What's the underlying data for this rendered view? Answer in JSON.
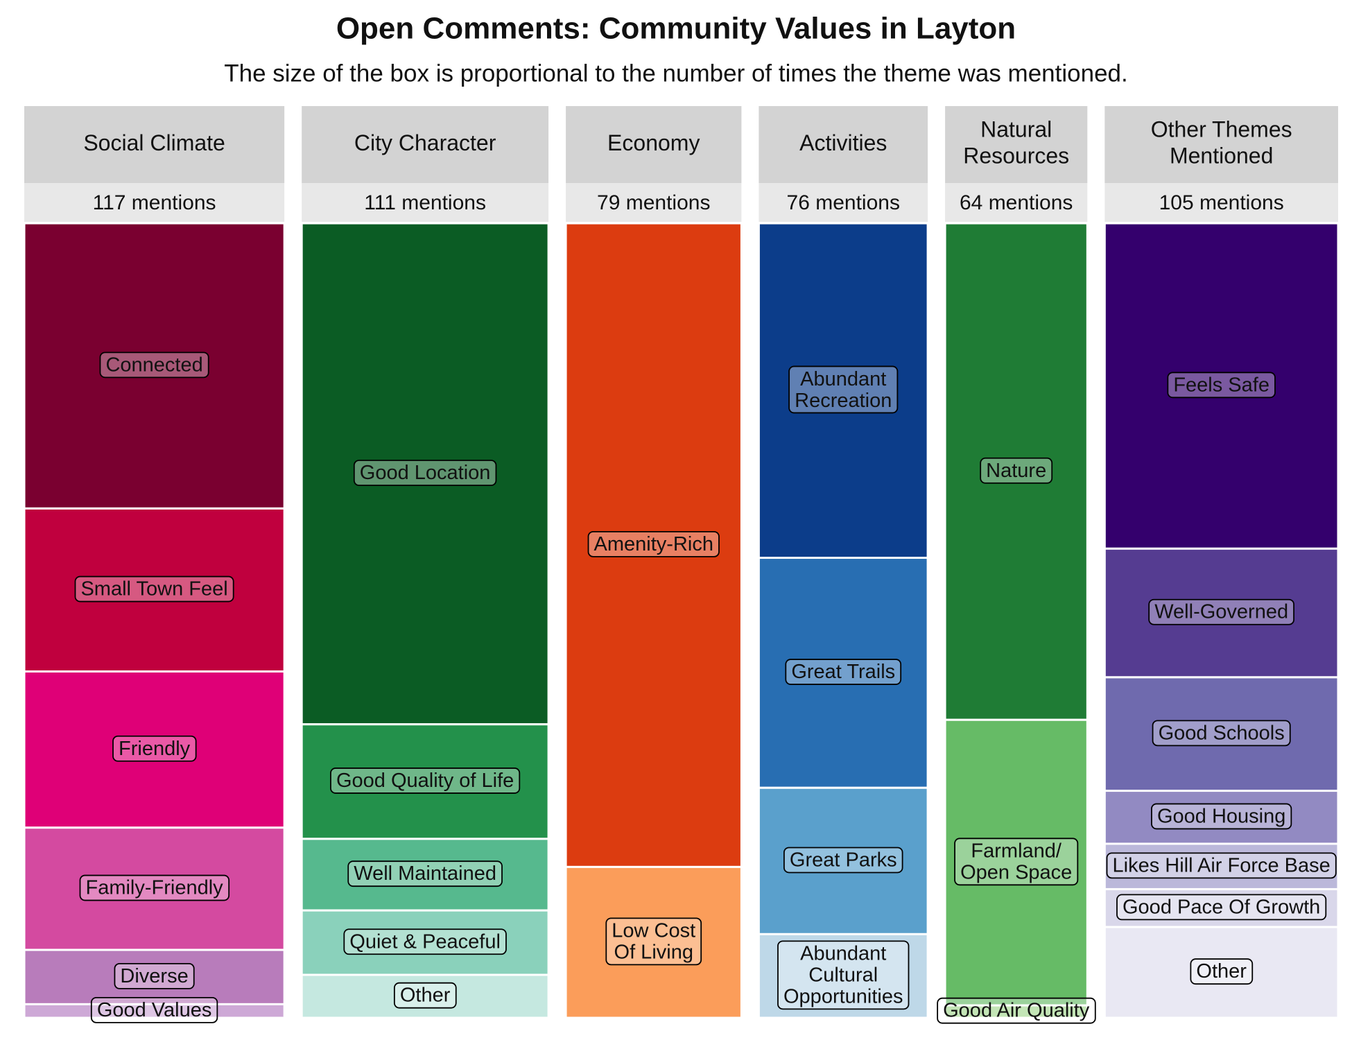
{
  "chart_data": {
    "type": "mosaic",
    "title": "Open Comments: Community Values in Layton",
    "subtitle": "The size of the box is proportional to the number of times the theme was mentioned.",
    "columns": [
      {
        "name": "Social Climate",
        "total": 117,
        "total_label": "117 mentions",
        "segments": [
          {
            "name": "Connected",
            "value": 42,
            "color": "#7a0030"
          },
          {
            "name": "Small Town Feel",
            "value": 24,
            "color": "#c0003e"
          },
          {
            "name": "Friendly",
            "value": 23,
            "color": "#df0077"
          },
          {
            "name": "Family-Friendly",
            "value": 18,
            "color": "#d44aa0"
          },
          {
            "name": "Diverse",
            "value": 8,
            "color": "#b87cbb"
          },
          {
            "name": "Good Values",
            "value": 2,
            "color": "#cda8d6"
          }
        ]
      },
      {
        "name": "City Character",
        "total": 111,
        "total_label": "111 mentions",
        "segments": [
          {
            "name": "Good Location",
            "value": 70,
            "color": "#0b5c24"
          },
          {
            "name": "Good Quality of Life",
            "value": 16,
            "color": "#23914b"
          },
          {
            "name": "Well Maintained",
            "value": 10,
            "color": "#56b98e"
          },
          {
            "name": "Quiet & Peaceful",
            "value": 9,
            "color": "#8ad1bb"
          },
          {
            "name": "Other",
            "value": 6,
            "color": "#c5e8e0"
          }
        ]
      },
      {
        "name": "Economy",
        "total": 79,
        "total_label": "79 mentions",
        "segments": [
          {
            "name": "Amenity-Rich",
            "value": 64,
            "color": "#dc3c10"
          },
          {
            "name": "Low Cost\nOf Living",
            "value": 15,
            "color": "#fb9d5a"
          }
        ]
      },
      {
        "name": "Activities",
        "total": 76,
        "total_label": "76 mentions",
        "segments": [
          {
            "name": "Abundant\nRecreation",
            "value": 32,
            "color": "#0c3d8a"
          },
          {
            "name": "Great Trails",
            "value": 22,
            "color": "#286eb2"
          },
          {
            "name": "Great Parks",
            "value": 14,
            "color": "#5aa0cc"
          },
          {
            "name": "Abundant\nCultural\nOpportunities",
            "value": 8,
            "color": "#bed8e8"
          }
        ]
      },
      {
        "name": "Natural\nResources",
        "total": 64,
        "total_label": "64 mentions",
        "segments": [
          {
            "name": "Nature",
            "value": 40,
            "color": "#1f7c35"
          },
          {
            "name": "Farmland/\nOpen Space",
            "value": 23,
            "color": "#66bb66"
          },
          {
            "name": "Good Air Quality",
            "value": 1,
            "color": "#a4d890"
          }
        ]
      },
      {
        "name": "Other Themes\nMentioned",
        "total": 105,
        "total_label": "105 mentions",
        "segments": [
          {
            "name": "Feels Safe",
            "value": 43,
            "color": "#34006d"
          },
          {
            "name": "Well-Governed",
            "value": 17,
            "color": "#553c91"
          },
          {
            "name": "Good Schools",
            "value": 15,
            "color": "#6f6aae"
          },
          {
            "name": "Good Housing",
            "value": 7,
            "color": "#928ac2"
          },
          {
            "name": "Likes Hill Air Force Base",
            "value": 6,
            "color": "#bbb8da"
          },
          {
            "name": "Good Pace Of Growth",
            "value": 5,
            "color": "#d9d7ea"
          },
          {
            "name": "Other",
            "value": 12,
            "color": "#e9e8f3"
          }
        ]
      }
    ]
  }
}
